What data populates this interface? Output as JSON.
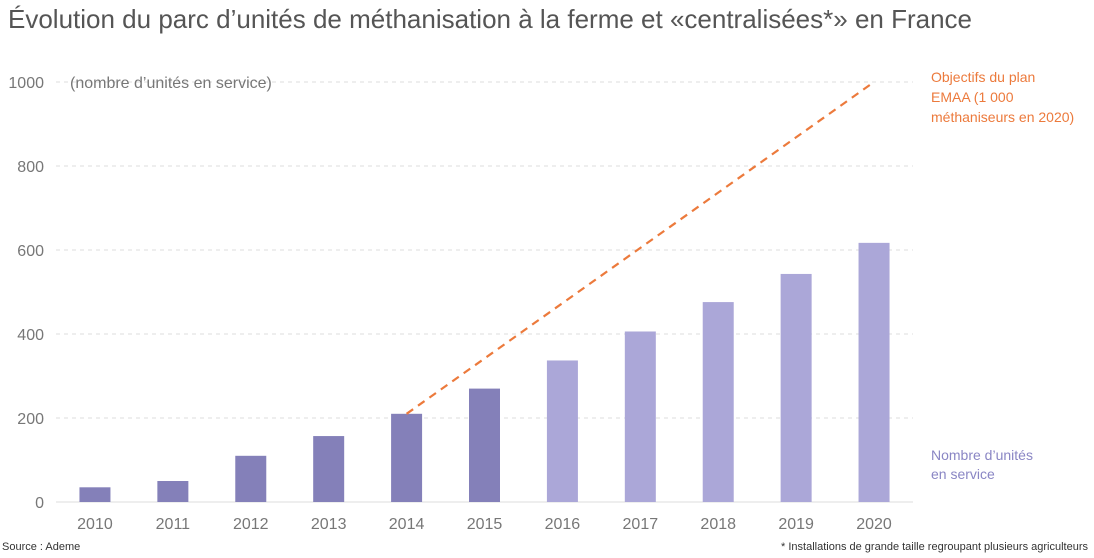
{
  "title": "Évolution du parc d’unités de méthanisation à la ferme et «centralisées*» en France",
  "footer": {
    "source": "Source : Ademe",
    "note": "* Installations de grande taille regroupant plusieurs agriculteurs"
  },
  "colors": {
    "bar_dark": "#8480b9",
    "bar_light": "#aba7d8",
    "objective": "#ec7a3c",
    "grid": "#dddddd",
    "axis_text": "#777777"
  },
  "chart_data": {
    "type": "bar",
    "title": "Évolution du parc d’unités de méthanisation à la ferme et «centralisées*» en France",
    "ylabel": "(nombre d’unités en service)",
    "xlabel": "",
    "ylim": [
      0,
      1000
    ],
    "yticks": [
      0,
      200,
      400,
      600,
      800,
      1000
    ],
    "ytick_labels": [
      "0",
      "200",
      "400",
      "600",
      "800",
      "1000"
    ],
    "grid": true,
    "categories": [
      "2010",
      "2011",
      "2012",
      "2013",
      "2014",
      "2015",
      "2016",
      "2017",
      "2018",
      "2019",
      "2020"
    ],
    "series": [
      {
        "name": "Nombre d’unités en service",
        "values": [
          35,
          50,
          110,
          157,
          210,
          270,
          337,
          406,
          476,
          543,
          617
        ],
        "shade": [
          "dark",
          "dark",
          "dark",
          "dark",
          "dark",
          "dark",
          "light",
          "light",
          "light",
          "light",
          "light"
        ]
      },
      {
        "name": "Objectifs du plan EMAA (1 000 méthaniseurs en 2020)",
        "type": "line",
        "style": "dashed",
        "x": [
          "2014",
          "2020"
        ],
        "values": [
          210,
          1000
        ]
      }
    ],
    "annotations": [
      {
        "id": "objective",
        "lines": [
          "Objectifs du plan",
          "EMAA (1 000",
          "méthaniseurs en 2020)"
        ],
        "color": "#ec7a3c"
      },
      {
        "id": "units",
        "lines": [
          "Nombre d’unités",
          "en service"
        ],
        "color": "#8a86c4"
      }
    ]
  }
}
